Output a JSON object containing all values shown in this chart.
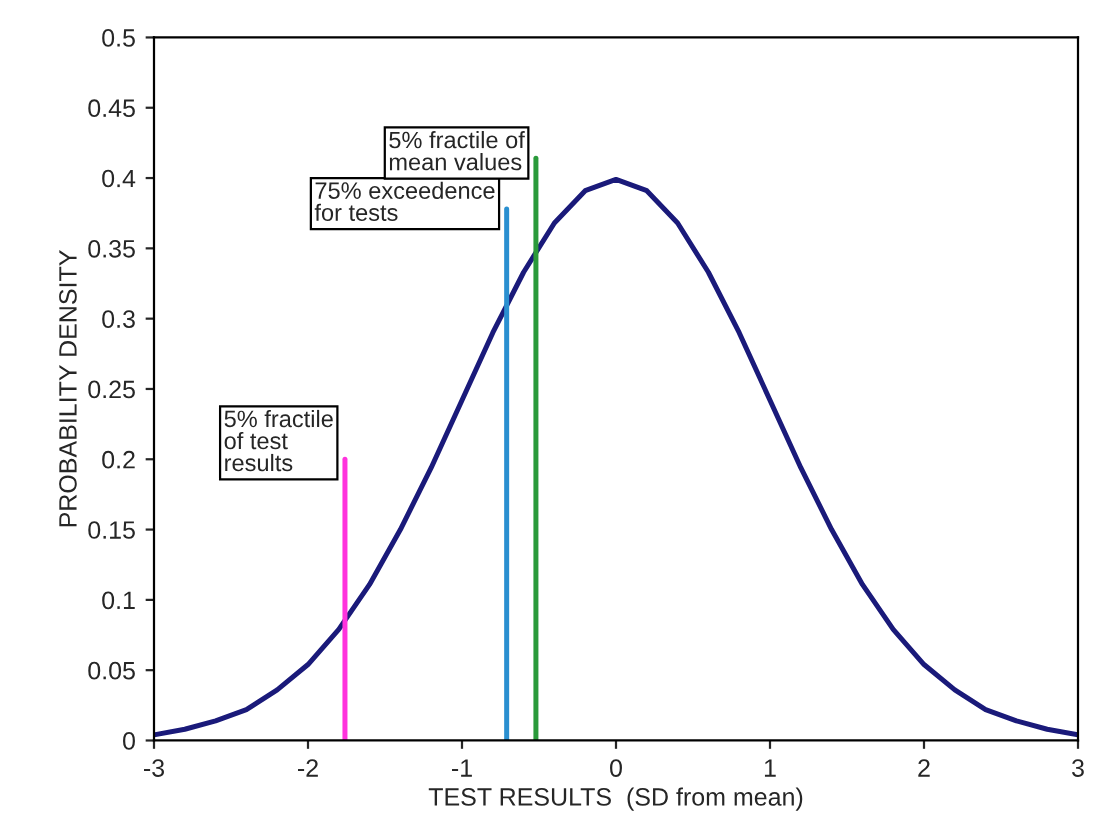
{
  "chart_data": {
    "type": "line",
    "xlabel": "TEST RESULTS  (SD from mean)",
    "ylabel": "PROBABILITY DENSITY",
    "xlim": [
      -3,
      3
    ],
    "ylim": [
      0,
      0.5
    ],
    "xticks": [
      {
        "value": -3,
        "label": "-3"
      },
      {
        "value": -2,
        "label": "-2"
      },
      {
        "value": -1,
        "label": "-1"
      },
      0,
      1,
      2,
      3
    ],
    "yticks": [
      0,
      0.05,
      0.1,
      0.15,
      0.2,
      0.25,
      0.3,
      0.35,
      0.4,
      0.45,
      0.5
    ],
    "grid": false,
    "legend": false,
    "marker": "none",
    "line_style": "solid",
    "series": [
      {
        "color": "#1a1a7a",
        "x": [
          -3,
          -2.8,
          -2.6,
          -2.4,
          -2.2,
          -2,
          -1.8,
          -1.6,
          -1.4,
          -1.2,
          -1,
          -0.8,
          -0.6,
          -0.4,
          -0.2,
          0,
          0.2,
          0.4,
          0.6,
          0.8,
          1,
          1.2,
          1.4,
          1.6,
          1.8,
          2,
          2.2,
          2.4,
          2.6,
          2.8,
          3
        ],
        "values": [
          0.004,
          0.008,
          0.014,
          0.022,
          0.036,
          0.054,
          0.079,
          0.111,
          0.15,
          0.194,
          0.242,
          0.29,
          0.333,
          0.368,
          0.391,
          0.399,
          0.391,
          0.368,
          0.333,
          0.29,
          0.242,
          0.194,
          0.15,
          0.111,
          0.079,
          0.054,
          0.036,
          0.022,
          0.014,
          0.008,
          0.004
        ]
      },
      {
        "color": "#ff33dd",
        "x": [
          -1.76,
          -1.76
        ],
        "values": [
          0,
          0.2
        ]
      },
      {
        "color": "#2a8fd0",
        "x": [
          -0.71,
          -0.71
        ],
        "values": [
          0,
          0.378
        ]
      },
      {
        "color": "#2a9a3a",
        "x": [
          -0.52,
          -0.52
        ],
        "values": [
          0,
          0.414
        ]
      }
    ],
    "annotations": [
      {
        "text": "5% fractile\nof test\nresults",
        "x": -1.76,
        "y": 0.2
      },
      {
        "text": "75% exceedence\nfor tests",
        "x": -0.71,
        "y": 0.378
      },
      {
        "text": "5% fractile of\nmean values",
        "x": -0.52,
        "y": 0.414
      }
    ]
  }
}
